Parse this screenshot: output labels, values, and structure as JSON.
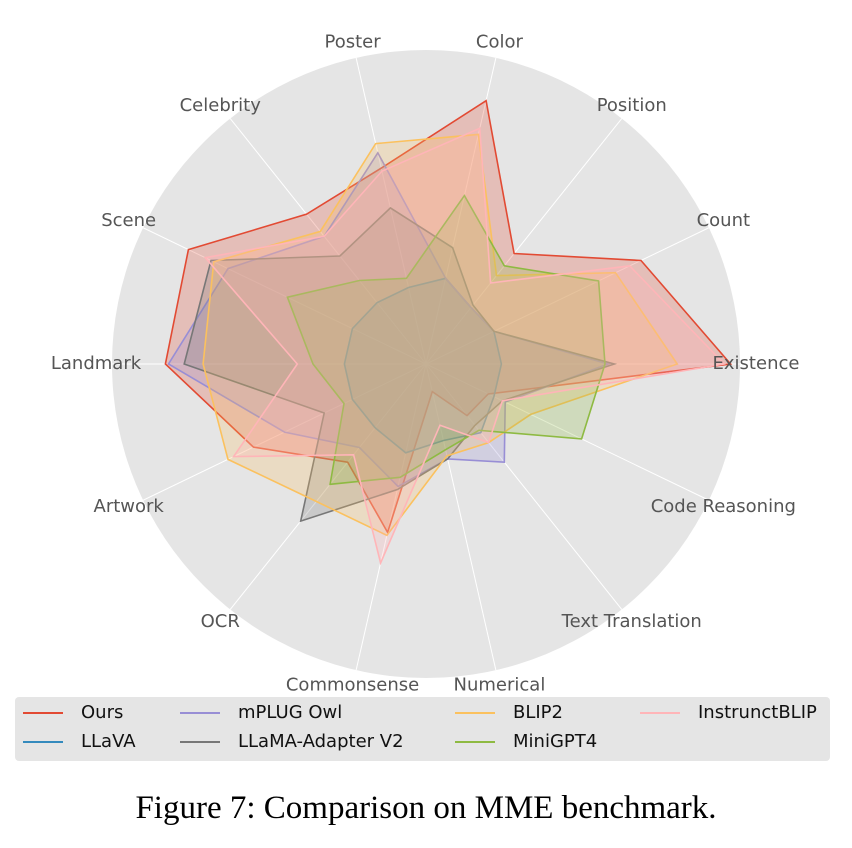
{
  "chart_data": {
    "type": "radar",
    "title": "",
    "axes": [
      "Existence",
      "Count",
      "Position",
      "Color",
      "Poster",
      "Celebrity",
      "Scene",
      "Landmark",
      "Artwork",
      "OCR",
      "Commonsense",
      "Numerical",
      "Text Translation",
      "Code Reasoning"
    ],
    "range": [
      0,
      1
    ],
    "grid": true,
    "legend_position": "bottom",
    "series": [
      {
        "name": "Ours",
        "color": "#E24A33",
        "values": [
          0.97,
          0.76,
          0.45,
          0.86,
          0.64,
          0.61,
          0.84,
          0.83,
          0.61,
          0.4,
          0.55,
          0.09,
          0.21,
          0.22
        ]
      },
      {
        "name": "LLaVA",
        "color": "#348ABD",
        "values": [
          0.24,
          0.24,
          0.23,
          0.28,
          0.25,
          0.25,
          0.26,
          0.26,
          0.26,
          0.26,
          0.29,
          0.25,
          0.28,
          0.24
        ]
      },
      {
        "name": "mPLUG Owl",
        "color": "#988ED5",
        "values": [
          0.58,
          0.24,
          0.23,
          0.28,
          0.69,
          0.52,
          0.7,
          0.82,
          0.5,
          0.34,
          0.4,
          0.31,
          0.4,
          0.28
        ]
      },
      {
        "name": "LLaMA-Adapter V2",
        "color": "#777777",
        "values": [
          0.6,
          0.24,
          0.24,
          0.38,
          0.51,
          0.44,
          0.76,
          0.77,
          0.36,
          0.64,
          0.41,
          0.31,
          0.25,
          0.27
        ]
      },
      {
        "name": "BLIP2",
        "color": "#FBC15E",
        "values": [
          0.8,
          0.67,
          0.36,
          0.75,
          0.72,
          0.54,
          0.75,
          0.71,
          0.7,
          0.56,
          0.56,
          0.3,
          0.32,
          0.37
        ]
      },
      {
        "name": "MiniGPT4",
        "color": "#8EBA42",
        "values": [
          0.57,
          0.61,
          0.4,
          0.55,
          0.28,
          0.34,
          0.49,
          0.36,
          0.29,
          0.49,
          0.37,
          0.28,
          0.27,
          0.55
        ]
      },
      {
        "name": "InstrunctBLIP",
        "color": "#FFB5B8",
        "values": [
          0.95,
          0.72,
          0.33,
          0.77,
          0.63,
          0.52,
          0.78,
          0.41,
          0.68,
          0.37,
          0.65,
          0.2,
          0.32,
          0.27
        ]
      }
    ]
  },
  "legend_order": [
    0,
    2,
    4,
    6,
    1,
    3,
    5
  ],
  "caption": "Figure 7: Comparison on MME benchmark."
}
